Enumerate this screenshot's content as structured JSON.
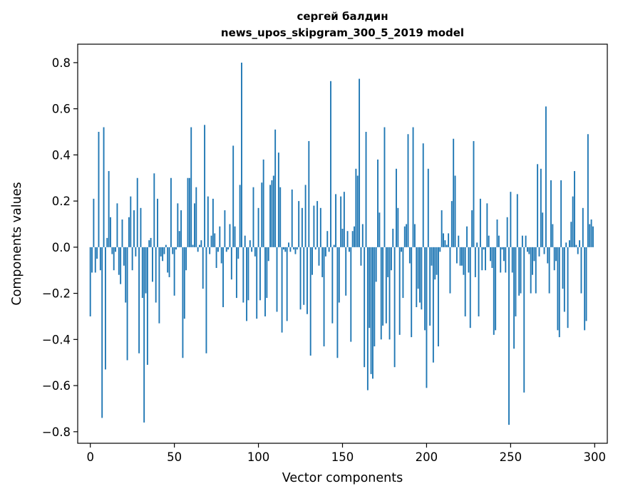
{
  "chart_data": {
    "type": "bar",
    "title": "сергей балдин",
    "subtitle": "news_upos_skipgram_300_5_2019 model",
    "xlabel": "Vector components",
    "ylabel": "Components values",
    "xlim": [
      -7.5,
      307.5
    ],
    "ylim": [
      -0.85,
      0.88
    ],
    "x_ticks": [
      0,
      50,
      100,
      150,
      200,
      250,
      300
    ],
    "x_tick_labels": [
      "0",
      "50",
      "100",
      "150",
      "200",
      "250",
      "300"
    ],
    "y_ticks": [
      0.8,
      0.6,
      0.4,
      0.2,
      0.0,
      -0.2,
      -0.4,
      -0.6,
      -0.8
    ],
    "y_tick_labels": [
      "0.8",
      "0.6",
      "0.4",
      "0.2",
      "0.0",
      "−0.2",
      "−0.4",
      "−0.6",
      "−0.8"
    ],
    "bar_color": "#1f77b4",
    "series": [
      {
        "name": "components",
        "values": [
          -0.3,
          -0.11,
          0.21,
          -0.11,
          -0.05,
          0.5,
          -0.1,
          -0.74,
          0.52,
          -0.53,
          0.04,
          0.33,
          0.13,
          -0.03,
          -0.1,
          -0.02,
          0.19,
          -0.12,
          -0.16,
          0.12,
          -0.08,
          -0.24,
          -0.49,
          0.13,
          0.22,
          -0.1,
          0.16,
          -0.04,
          0.3,
          -0.46,
          0.17,
          -0.22,
          -0.76,
          -0.2,
          -0.51,
          0.03,
          0.04,
          -0.15,
          0.32,
          -0.24,
          0.21,
          -0.33,
          -0.04,
          -0.06,
          -0.03,
          0.01,
          -0.11,
          -0.13,
          0.3,
          -0.03,
          -0.21,
          -0.01,
          0.19,
          0.07,
          0.16,
          -0.48,
          -0.31,
          -0.1,
          0.3,
          0.3,
          0.52,
          0.01,
          0.19,
          0.26,
          -0.02,
          0.01,
          0.03,
          -0.18,
          0.53,
          -0.46,
          0.22,
          -0.03,
          0.05,
          0.21,
          0.06,
          -0.09,
          -0.02,
          0.09,
          -0.07,
          -0.26,
          0.16,
          -0.02,
          -0.01,
          0.1,
          -0.14,
          0.44,
          0.09,
          -0.22,
          -0.05,
          0.27,
          0.8,
          -0.24,
          0.05,
          -0.32,
          -0.23,
          0.03,
          -0.02,
          0.26,
          -0.04,
          -0.31,
          0.17,
          -0.23,
          0.28,
          0.38,
          -0.3,
          -0.22,
          -0.06,
          0.27,
          0.29,
          0.31,
          0.51,
          -0.28,
          0.41,
          0.26,
          -0.37,
          -0.01,
          -0.02,
          -0.32,
          0.02,
          -0.02,
          0.25,
          -0.01,
          -0.03,
          -0.01,
          0.2,
          -0.27,
          0.17,
          -0.25,
          0.27,
          -0.29,
          0.46,
          -0.47,
          -0.12,
          0.18,
          -0.01,
          0.2,
          -0.08,
          0.17,
          -0.13,
          -0.43,
          -0.04,
          0.07,
          -0.02,
          0.72,
          -0.33,
          0.01,
          0.23,
          -0.48,
          -0.24,
          0.22,
          0.08,
          0.24,
          -0.21,
          0.07,
          -0.02,
          -0.41,
          0.07,
          0.09,
          0.34,
          0.31,
          0.73,
          -0.08,
          0.1,
          -0.52,
          0.5,
          -0.62,
          -0.35,
          -0.55,
          -0.57,
          -0.43,
          -0.15,
          0.38,
          0.15,
          -0.4,
          -0.34,
          0.52,
          -0.33,
          -0.13,
          -0.4,
          -0.1,
          0.08,
          -0.52,
          0.34,
          0.17,
          -0.38,
          -0.02,
          -0.22,
          0.09,
          0.1,
          0.49,
          -0.07,
          -0.39,
          0.52,
          0.1,
          -0.26,
          -0.18,
          -0.24,
          -0.27,
          0.45,
          -0.36,
          -0.61,
          0.34,
          -0.34,
          -0.08,
          -0.5,
          -0.14,
          -0.12,
          -0.43,
          -0.02,
          0.16,
          0.06,
          0.03,
          0.01,
          0.06,
          -0.2,
          0.2,
          0.47,
          0.31,
          -0.07,
          0.05,
          -0.08,
          -0.08,
          -0.12,
          -0.3,
          0.09,
          -0.11,
          -0.35,
          0.16,
          0.46,
          -0.13,
          0.02,
          -0.3,
          0.21,
          -0.1,
          -0.01,
          -0.1,
          0.19,
          0.05,
          -0.06,
          -0.09,
          -0.38,
          -0.36,
          0.12,
          0.05,
          -0.11,
          -0.01,
          -0.06,
          -0.11,
          0.13,
          -0.77,
          0.24,
          -0.11,
          -0.44,
          -0.3,
          0.23,
          -0.21,
          -0.2,
          0.05,
          -0.63,
          0.05,
          -0.02,
          -0.03,
          -0.2,
          -0.12,
          -0.06,
          -0.2,
          0.36,
          -0.04,
          0.34,
          0.15,
          -0.03,
          0.61,
          -0.07,
          -0.2,
          0.29,
          0.1,
          -0.1,
          -0.06,
          -0.36,
          -0.39,
          0.29,
          -0.18,
          -0.28,
          0.02,
          -0.35,
          0.03,
          0.11,
          0.22,
          0.33,
          0.01,
          -0.03,
          0.03,
          -0.2,
          0.17,
          -0.36,
          -0.32,
          0.49,
          0.1,
          0.12,
          0.09
        ]
      }
    ]
  }
}
